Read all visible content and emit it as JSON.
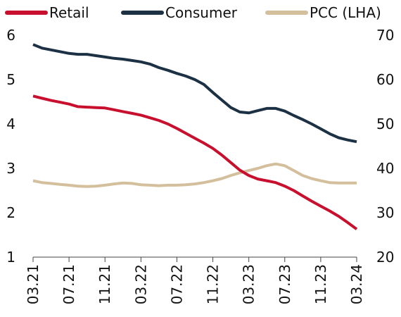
{
  "chart_data": {
    "type": "line",
    "categories": [
      "03.21",
      null,
      null,
      null,
      "07.21",
      null,
      null,
      null,
      "11.21",
      null,
      null,
      null,
      "03.22",
      null,
      null,
      null,
      "07.22",
      null,
      null,
      null,
      "11.22",
      null,
      null,
      null,
      "03.23",
      null,
      null,
      null,
      "07.23",
      null,
      null,
      null,
      "11.23",
      null,
      null,
      null,
      "03.24"
    ],
    "series": [
      {
        "name": "Retail",
        "color": "#c8102e",
        "axis": "y2",
        "values": [
          56.3,
          55.8,
          55.3,
          54.9,
          54.5,
          53.9,
          53.8,
          53.7,
          53.6,
          53.2,
          52.8,
          52.4,
          52.0,
          51.4,
          50.8,
          50.0,
          49.0,
          47.9,
          46.8,
          45.7,
          44.5,
          43.0,
          41.3,
          39.6,
          38.4,
          37.6,
          37.2,
          36.8,
          36.0,
          35.0,
          33.8,
          32.6,
          31.5,
          30.4,
          29.2,
          27.8,
          26.3
        ]
      },
      {
        "name": "Consumer",
        "color": "#1c3144",
        "axis": "y2",
        "values": [
          67.9,
          67.1,
          66.7,
          66.3,
          65.9,
          65.7,
          65.7,
          65.4,
          65.1,
          64.8,
          64.6,
          64.3,
          64.0,
          63.5,
          62.7,
          62.1,
          61.4,
          60.8,
          60.0,
          58.9,
          57.1,
          55.4,
          53.7,
          52.7,
          52.5,
          53.0,
          53.5,
          53.5,
          52.9,
          51.9,
          51.0,
          50.0,
          48.9,
          47.8,
          46.9,
          46.4,
          46.0
        ]
      },
      {
        "name": "PCC (LHA)",
        "color": "#d4bf9c",
        "values": [
          2.72,
          2.68,
          2.66,
          2.64,
          2.62,
          2.6,
          2.59,
          2.6,
          2.62,
          2.65,
          2.67,
          2.66,
          2.63,
          2.62,
          2.61,
          2.62,
          2.62,
          2.63,
          2.65,
          2.68,
          2.72,
          2.77,
          2.84,
          2.9,
          2.95,
          3.0,
          3.06,
          3.1,
          3.06,
          2.95,
          2.84,
          2.77,
          2.72,
          2.68,
          2.67,
          2.67,
          2.67
        ]
      }
    ],
    "ylim": [
      1,
      6
    ],
    "yticks": [
      1,
      2,
      3,
      4,
      5,
      6
    ],
    "y2lim": [
      20,
      70
    ],
    "y2ticks": [
      20,
      30,
      40,
      50,
      60,
      70
    ],
    "legend": "top"
  }
}
